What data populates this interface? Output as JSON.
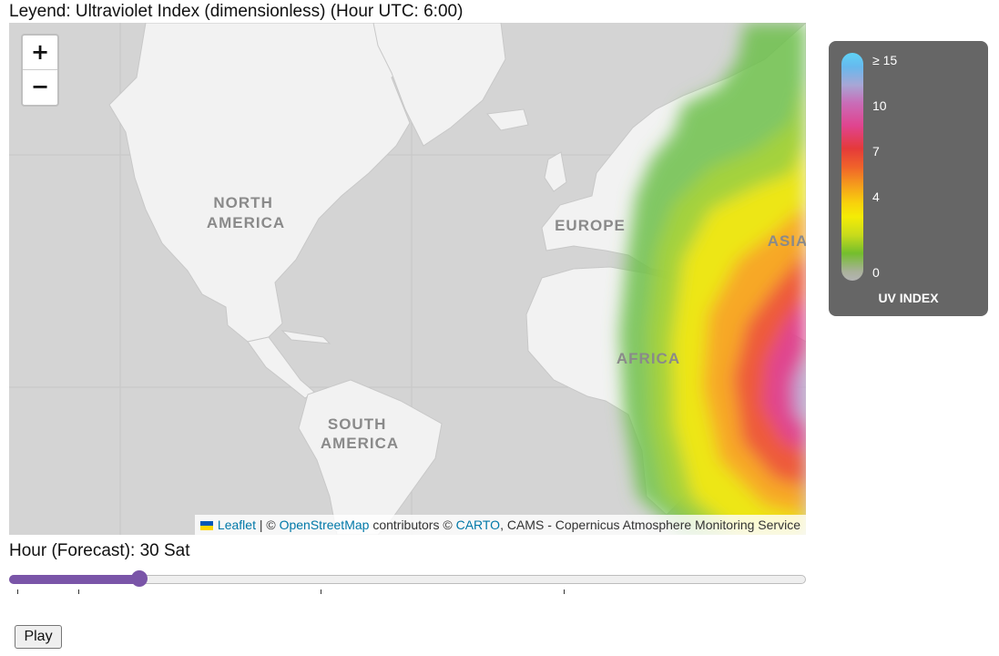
{
  "page_title": "Leyend: Ultraviolet Index (dimensionless) (Hour UTC: 6:00)",
  "map": {
    "zoom_in_label": "+",
    "zoom_out_label": "−",
    "region_labels": [
      {
        "name": "north-america-label",
        "text": "NORTH\nAMERICA"
      },
      {
        "name": "europe-label",
        "text": "EUROPE"
      },
      {
        "name": "asia-label",
        "text": "ASIA"
      },
      {
        "name": "africa-label",
        "text": "AFRICA"
      },
      {
        "name": "south-america-label",
        "text": "SOUTH\nAMERICA"
      }
    ],
    "attribution": {
      "leaflet": "Leaflet",
      "sep": " | © ",
      "osm": "OpenStreetMap",
      "contributors": " contributors © ",
      "carto": "CARTO",
      "source": ", CAMS - Copernicus Atmosphere Monitoring Service"
    },
    "colors": {
      "water": "#d4d4d4",
      "land": "#f2f2f2",
      "label": "#8a8a8a"
    }
  },
  "legend": {
    "title": "UV INDEX",
    "ticks": [
      {
        "label": "≥ 15",
        "name": "legend-tick-15"
      },
      {
        "label": "10",
        "name": "legend-tick-10"
      },
      {
        "label": "7",
        "name": "legend-tick-7"
      },
      {
        "label": "4",
        "name": "legend-tick-4"
      },
      {
        "label": "0",
        "name": "legend-tick-0"
      }
    ]
  },
  "forecast": {
    "hour_label": "Hour (Forecast): 30 Sat",
    "slider_fraction": 0.163,
    "accent": "#7a55a8"
  },
  "controls": {
    "play_label": "Play"
  }
}
